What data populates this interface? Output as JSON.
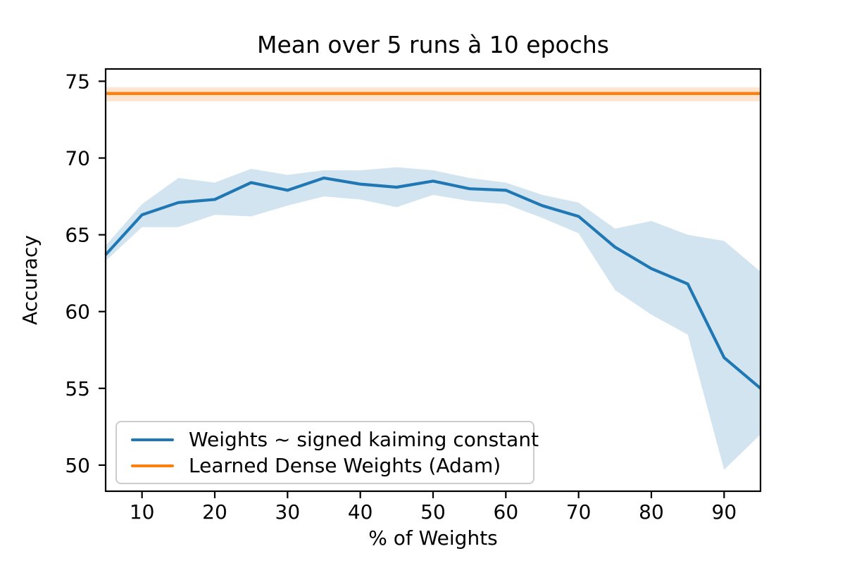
{
  "chart_data": {
    "type": "line",
    "title": "Mean over 5 runs à 10 epochs",
    "xlabel": "% of Weights",
    "ylabel": "Accuracy",
    "xlim": [
      5,
      95
    ],
    "ylim": [
      48.3,
      75.8
    ],
    "x_ticks": [
      10,
      20,
      30,
      40,
      50,
      60,
      70,
      80,
      90
    ],
    "y_ticks": [
      50,
      55,
      60,
      65,
      70,
      75
    ],
    "grid": false,
    "legend_position": "lower left",
    "band_opacity": 0.2,
    "series": [
      {
        "name": "Weights ~ signed kaiming constant",
        "color": "#1f77b4",
        "x": [
          5,
          10,
          15,
          20,
          25,
          30,
          35,
          40,
          45,
          50,
          55,
          60,
          65,
          70,
          75,
          80,
          85,
          90,
          95
        ],
        "y": [
          63.7,
          66.3,
          67.1,
          67.3,
          68.4,
          67.9,
          68.7,
          68.3,
          68.1,
          68.5,
          68.0,
          67.9,
          66.9,
          66.2,
          64.2,
          62.8,
          61.8,
          57.0,
          55.0
        ],
        "band_low": [
          63.3,
          65.5,
          65.5,
          66.3,
          66.2,
          66.9,
          67.5,
          67.3,
          66.8,
          67.6,
          67.2,
          67.0,
          66.1,
          65.1,
          61.4,
          59.8,
          58.5,
          49.7,
          52.0
        ],
        "band_high": [
          64.3,
          67.0,
          68.7,
          68.4,
          69.3,
          68.9,
          69.2,
          69.2,
          69.4,
          69.2,
          68.7,
          68.4,
          67.6,
          67.1,
          65.4,
          65.9,
          65.0,
          64.6,
          62.6
        ]
      },
      {
        "name": "Learned Dense Weights (Adam)",
        "color": "#ff7f0e",
        "x": [
          5,
          95
        ],
        "y": [
          74.2,
          74.2
        ],
        "band_low": [
          73.7,
          73.7
        ],
        "band_high": [
          74.6,
          74.6
        ]
      }
    ]
  }
}
